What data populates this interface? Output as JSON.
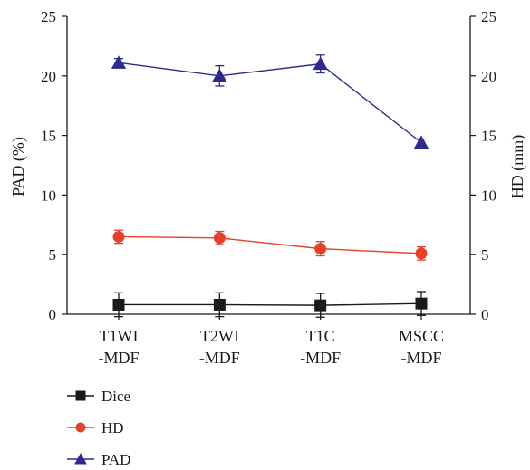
{
  "chart_data": {
    "type": "line",
    "categories": [
      [
        "T1WI",
        "-MDF"
      ],
      [
        "T2WI",
        "-MDF"
      ],
      [
        "T1C",
        "-MDF"
      ],
      [
        "MSCC",
        "-MDF"
      ]
    ],
    "ylabel_left": "PAD (%)",
    "ylabel_right": "HD (mm)",
    "ylim_left": [
      0,
      25
    ],
    "ylim_right": [
      0,
      25
    ],
    "yticks_left": [
      "0",
      "5",
      "10",
      "15",
      "20",
      "25"
    ],
    "yticks_right": [
      "0",
      "5",
      "10",
      "15",
      "20",
      "25"
    ],
    "grid": false,
    "legend_position": "bottom-left",
    "series": [
      {
        "name": "Dice",
        "values": [
          0.8,
          0.8,
          0.75,
          0.9
        ],
        "errors": [
          1.0,
          1.0,
          1.0,
          1.0
        ],
        "marker": "square",
        "color": "#1a1a1a"
      },
      {
        "name": "HD",
        "values": [
          6.5,
          6.4,
          5.5,
          5.1
        ],
        "errors": [
          0.55,
          0.55,
          0.6,
          0.55
        ],
        "marker": "circle",
        "color": "#e8412a"
      },
      {
        "name": "PAD",
        "values": [
          21.1,
          20.0,
          21.0,
          14.4
        ],
        "errors": [
          0.35,
          0.85,
          0.75,
          0.3
        ],
        "marker": "triangle",
        "color": "#2e2a8f"
      }
    ]
  }
}
